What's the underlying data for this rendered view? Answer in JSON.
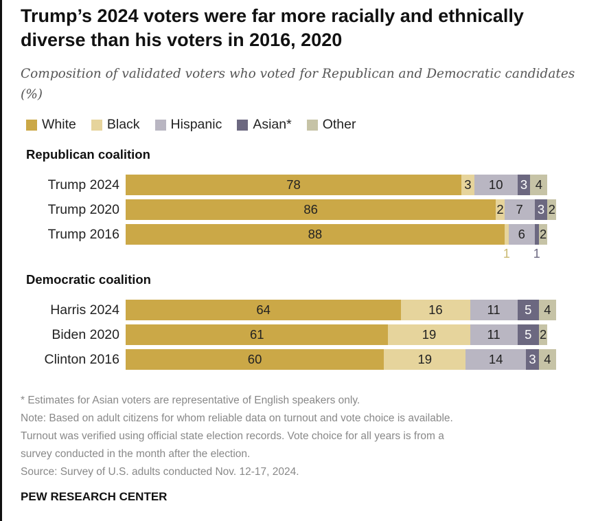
{
  "chart_data": {
    "type": "bar",
    "orientation": "horizontal",
    "stacked": true,
    "title": "Trump’s 2024 voters were far more racially and ethnically diverse than his voters in 2016, 2020",
    "subtitle": "Composition of validated voters who voted for Republican and Democratic candidates (%)",
    "legend": {
      "placement": "top",
      "items": [
        {
          "name": "White",
          "color": "#CBA847"
        },
        {
          "name": "Black",
          "color": "#E6D49C"
        },
        {
          "name": "Hispanic",
          "color": "#B9B6C2"
        },
        {
          "name": "Asian*",
          "color": "#6C6880"
        },
        {
          "name": "Other",
          "color": "#C6C3A6"
        }
      ]
    },
    "groups": [
      {
        "name": "Republican coalition",
        "rows": [
          {
            "label": "Trump 2024",
            "values": [
              78,
              3,
              10,
              3,
              4
            ]
          },
          {
            "label": "Trump 2020",
            "values": [
              86,
              2,
              7,
              3,
              2
            ]
          },
          {
            "label": "Trump 2016",
            "values": [
              88,
              1,
              6,
              1,
              2
            ]
          }
        ]
      },
      {
        "name": "Democratic coalition",
        "rows": [
          {
            "label": "Harris 2024",
            "values": [
              64,
              16,
              11,
              5,
              4
            ]
          },
          {
            "label": "Biden 2020",
            "values": [
              61,
              19,
              11,
              5,
              2
            ]
          },
          {
            "label": "Clinton 2016",
            "values": [
              60,
              19,
              14,
              3,
              4
            ]
          }
        ]
      }
    ]
  },
  "notes": [
    "* Estimates for Asian voters are representative of English speakers only.",
    "Note: Based on adult citizens for whom reliable data on turnout and vote choice is available.",
    "Turnout was verified using official state election records. Vote choice for all years is from a",
    "survey conducted in the month after the election.",
    "Source: Survey of U.S. adults conducted Nov. 12-17, 2024."
  ],
  "brand": "PEW RESEARCH CENTER"
}
